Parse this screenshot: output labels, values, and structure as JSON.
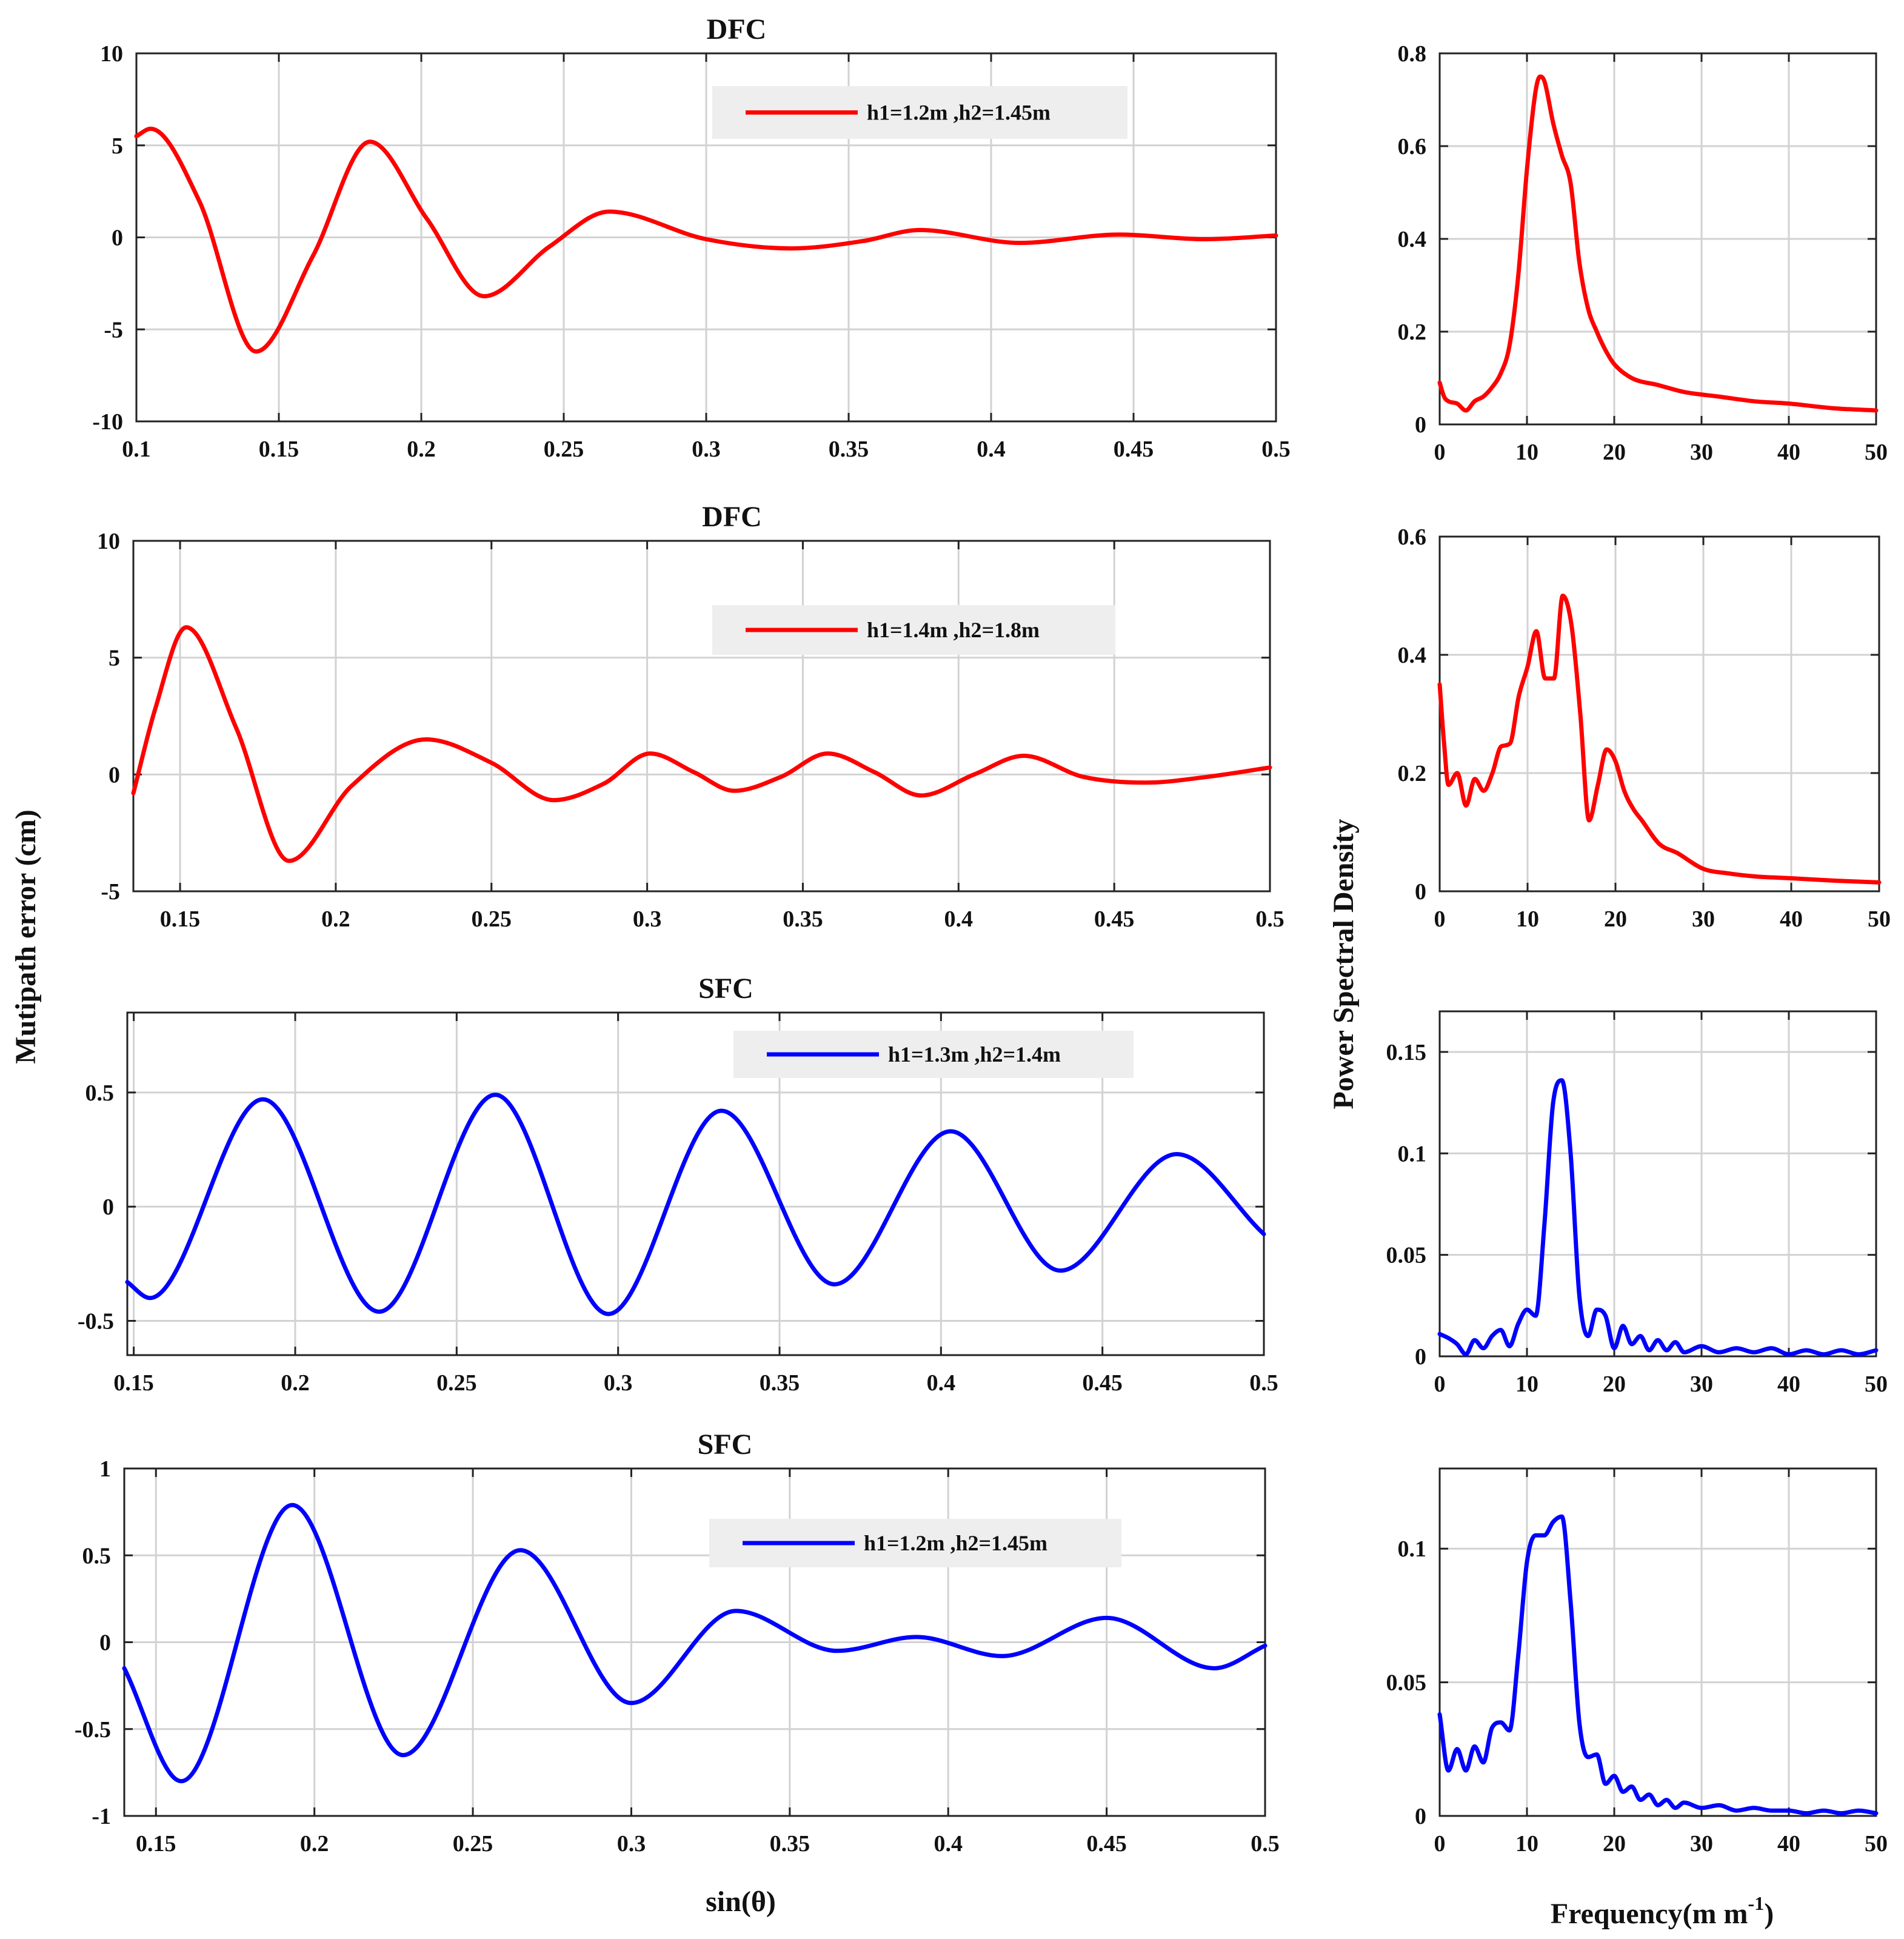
{
  "figure": {
    "left_ylabel": "Mutipath error (cm)",
    "right_ylabel": "Power Spectral Density",
    "left_xlabel": "sin(θ)",
    "right_xlabel_main": "Frequency(m m",
    "right_xlabel_sup": "-1",
    "right_xlabel_end": ")"
  },
  "chart_data": [
    {
      "id": "mp1",
      "type": "line",
      "title": "DFC",
      "color": "#ff0000",
      "legend": "h1=1.2m ,h2=1.45m",
      "xlim": [
        0.1,
        0.5
      ],
      "ylim": [
        -10,
        10
      ],
      "xticks": [
        0.1,
        0.15,
        0.2,
        0.25,
        0.3,
        0.35,
        0.4,
        0.45,
        0.5
      ],
      "xtick_labels": [
        "0.1",
        "0.15",
        "0.2",
        "0.25",
        "0.3",
        "0.35",
        "0.4",
        "0.45",
        "0.5"
      ],
      "yticks": [
        -10,
        -5,
        0,
        5,
        10
      ],
      "ytick_labels": [
        "-10",
        "-5",
        "0",
        "5",
        "10"
      ],
      "x": [
        0.1,
        0.105,
        0.122,
        0.142,
        0.162,
        0.182,
        0.202,
        0.222,
        0.245,
        0.266,
        0.3,
        0.33,
        0.355,
        0.375,
        0.41,
        0.445,
        0.475,
        0.5
      ],
      "y": [
        5.5,
        5.9,
        2.0,
        -6.2,
        -1.0,
        5.2,
        1.0,
        -3.2,
        -0.5,
        1.4,
        -0.1,
        -0.6,
        -0.2,
        0.4,
        -0.3,
        0.15,
        -0.1,
        0.1
      ]
    },
    {
      "id": "psd1",
      "type": "line",
      "title": "",
      "color": "#ff0000",
      "xlim": [
        0,
        50
      ],
      "ylim": [
        0,
        0.8
      ],
      "xticks": [
        0,
        10,
        20,
        30,
        40,
        50
      ],
      "xtick_labels": [
        "0",
        "10",
        "20",
        "30",
        "40",
        "50"
      ],
      "yticks": [
        0,
        0.2,
        0.4,
        0.6,
        0.8
      ],
      "ytick_labels": [
        "0",
        "0.2",
        "0.4",
        "0.6",
        "0.8"
      ],
      "x": [
        0,
        0.5,
        1,
        2,
        3,
        4,
        5,
        6,
        7,
        8,
        9,
        10,
        11,
        11.5,
        12,
        13,
        14,
        15,
        16,
        17,
        18,
        19,
        20,
        22,
        25,
        28,
        32,
        36,
        40,
        45,
        50
      ],
      "y": [
        0.09,
        0.06,
        0.05,
        0.045,
        0.03,
        0.05,
        0.06,
        0.08,
        0.11,
        0.17,
        0.32,
        0.55,
        0.72,
        0.75,
        0.74,
        0.65,
        0.58,
        0.52,
        0.35,
        0.25,
        0.2,
        0.16,
        0.13,
        0.1,
        0.085,
        0.07,
        0.06,
        0.05,
        0.045,
        0.035,
        0.03
      ]
    },
    {
      "id": "mp2",
      "type": "line",
      "title": "DFC",
      "color": "#ff0000",
      "legend": "h1=1.4m ,h2=1.8m",
      "xlim": [
        0.135,
        0.5
      ],
      "ylim": [
        -5,
        10
      ],
      "xticks": [
        0.15,
        0.2,
        0.25,
        0.3,
        0.35,
        0.4,
        0.45,
        0.5
      ],
      "xtick_labels": [
        "0.15",
        "0.2",
        "0.25",
        "0.3",
        "0.35",
        "0.4",
        "0.45",
        "0.5"
      ],
      "yticks": [
        -5,
        0,
        5,
        10
      ],
      "ytick_labels": [
        "-5",
        "0",
        "5",
        "10"
      ],
      "x": [
        0.135,
        0.142,
        0.152,
        0.168,
        0.185,
        0.205,
        0.229,
        0.25,
        0.27,
        0.286,
        0.301,
        0.315,
        0.328,
        0.343,
        0.358,
        0.373,
        0.388,
        0.405,
        0.421,
        0.44,
        0.46,
        0.48,
        0.5
      ],
      "y": [
        -0.8,
        2.8,
        6.3,
        2.0,
        -3.7,
        -0.5,
        1.5,
        0.5,
        -1.1,
        -0.4,
        0.9,
        0.1,
        -0.7,
        -0.1,
        0.9,
        0.1,
        -0.9,
        0.0,
        0.8,
        -0.1,
        -0.35,
        -0.1,
        0.3
      ]
    },
    {
      "id": "psd2",
      "type": "line",
      "title": "",
      "color": "#ff0000",
      "xlim": [
        0,
        50
      ],
      "ylim": [
        0,
        0.6
      ],
      "xticks": [
        0,
        10,
        20,
        30,
        40,
        50
      ],
      "xtick_labels": [
        "0",
        "10",
        "20",
        "30",
        "40",
        "50"
      ],
      "yticks": [
        0,
        0.2,
        0.4,
        0.6
      ],
      "ytick_labels": [
        "0",
        "0.2",
        "0.4",
        "0.6"
      ],
      "x": [
        0,
        0.5,
        1,
        2,
        3,
        4,
        5,
        6,
        7,
        8,
        9,
        10,
        11,
        12,
        13,
        14,
        15,
        16,
        17,
        18,
        19,
        20,
        21,
        22,
        23,
        25,
        27,
        30,
        33,
        36,
        40,
        45,
        50
      ],
      "y": [
        0.35,
        0.25,
        0.18,
        0.2,
        0.145,
        0.19,
        0.17,
        0.2,
        0.245,
        0.25,
        0.33,
        0.38,
        0.44,
        0.36,
        0.36,
        0.5,
        0.45,
        0.3,
        0.12,
        0.18,
        0.24,
        0.22,
        0.17,
        0.14,
        0.12,
        0.08,
        0.065,
        0.038,
        0.03,
        0.025,
        0.022,
        0.018,
        0.015
      ]
    },
    {
      "id": "mp3",
      "type": "line",
      "title": "SFC",
      "color": "#0000ff",
      "legend": "h1=1.3m ,h2=1.4m",
      "xlim": [
        0.148,
        0.5
      ],
      "ylim": [
        -0.65,
        0.85
      ],
      "xticks": [
        0.15,
        0.2,
        0.25,
        0.3,
        0.35,
        0.4,
        0.45,
        0.5
      ],
      "xtick_labels": [
        "0.15",
        "0.2",
        "0.25",
        "0.3",
        "0.35",
        "0.4",
        "0.45",
        "0.5"
      ],
      "yticks": [
        -0.5,
        0,
        0.5
      ],
      "ytick_labels": [
        "-0.5",
        "0",
        "0.5"
      ],
      "x": [
        0.148,
        0.155,
        0.19,
        0.226,
        0.262,
        0.297,
        0.332,
        0.367,
        0.403,
        0.437,
        0.473,
        0.5
      ],
      "y": [
        -0.33,
        -0.4,
        0.47,
        -0.46,
        0.49,
        -0.47,
        0.42,
        -0.34,
        0.33,
        -0.28,
        0.23,
        -0.12
      ]
    },
    {
      "id": "psd3",
      "type": "line",
      "title": "",
      "color": "#0000ff",
      "xlim": [
        0,
        50
      ],
      "ylim": [
        0,
        0.17
      ],
      "xticks": [
        0,
        10,
        20,
        30,
        40,
        50
      ],
      "xtick_labels": [
        "0",
        "10",
        "20",
        "30",
        "40",
        "50"
      ],
      "yticks": [
        0,
        0.05,
        0.1,
        0.15
      ],
      "ytick_labels": [
        "0",
        "0.05",
        "0.1",
        "0.15"
      ],
      "x": [
        0,
        1,
        2,
        3,
        4,
        5,
        6,
        7,
        8,
        9,
        10,
        11,
        12,
        13,
        14,
        15,
        16,
        17,
        18,
        19,
        20,
        21,
        22,
        23,
        24,
        25,
        26,
        27,
        28,
        30,
        32,
        34,
        36,
        38,
        40,
        42,
        44,
        46,
        48,
        50
      ],
      "y": [
        0.011,
        0.009,
        0.006,
        0.001,
        0.008,
        0.004,
        0.01,
        0.013,
        0.005,
        0.016,
        0.023,
        0.02,
        0.065,
        0.125,
        0.136,
        0.1,
        0.03,
        0.01,
        0.023,
        0.02,
        0.004,
        0.015,
        0.006,
        0.01,
        0.003,
        0.008,
        0.003,
        0.007,
        0.002,
        0.005,
        0.002,
        0.004,
        0.002,
        0.004,
        0.001,
        0.003,
        0.001,
        0.003,
        0.001,
        0.003
      ]
    },
    {
      "id": "mp4",
      "type": "line",
      "title": "SFC",
      "color": "#0000ff",
      "legend": "h1=1.2m ,h2=1.45m",
      "xlim": [
        0.14,
        0.5
      ],
      "ylim": [
        -1,
        1
      ],
      "xticks": [
        0.15,
        0.2,
        0.25,
        0.3,
        0.35,
        0.4,
        0.45,
        0.5
      ],
      "xtick_labels": [
        "0.15",
        "0.2",
        "0.25",
        "0.3",
        "0.35",
        "0.4",
        "0.45",
        "0.5"
      ],
      "yticks": [
        -1,
        -0.5,
        0,
        0.5,
        1
      ],
      "ytick_labels": [
        "-1",
        "-0.5",
        "0",
        "0.5",
        "1"
      ],
      "x": [
        0.14,
        0.158,
        0.193,
        0.228,
        0.265,
        0.3,
        0.333,
        0.365,
        0.39,
        0.417,
        0.45,
        0.484,
        0.5
      ],
      "y": [
        -0.15,
        -0.8,
        0.79,
        -0.65,
        0.53,
        -0.35,
        0.18,
        -0.05,
        0.03,
        -0.08,
        0.14,
        -0.15,
        -0.02
      ]
    },
    {
      "id": "psd4",
      "type": "line",
      "title": "",
      "color": "#0000ff",
      "xlim": [
        0,
        50
      ],
      "ylim": [
        0,
        0.13
      ],
      "xticks": [
        0,
        10,
        20,
        30,
        40,
        50
      ],
      "xtick_labels": [
        "0",
        "10",
        "20",
        "30",
        "40",
        "50"
      ],
      "yticks": [
        0,
        0.05,
        0.1
      ],
      "ytick_labels": [
        "0",
        "0.05",
        "0.1"
      ],
      "x": [
        0,
        1,
        2,
        3,
        4,
        5,
        6,
        7,
        8,
        9,
        10,
        11,
        12,
        13,
        14,
        15,
        16,
        17,
        18,
        19,
        20,
        21,
        22,
        23,
        24,
        25,
        26,
        27,
        28,
        30,
        32,
        34,
        36,
        38,
        40,
        42,
        44,
        46,
        48,
        50
      ],
      "y": [
        0.038,
        0.017,
        0.025,
        0.017,
        0.026,
        0.02,
        0.033,
        0.035,
        0.032,
        0.06,
        0.095,
        0.105,
        0.105,
        0.11,
        0.112,
        0.08,
        0.035,
        0.022,
        0.023,
        0.012,
        0.015,
        0.009,
        0.011,
        0.006,
        0.008,
        0.004,
        0.006,
        0.003,
        0.005,
        0.003,
        0.004,
        0.002,
        0.003,
        0.002,
        0.002,
        0.001,
        0.002,
        0.001,
        0.002,
        0.001
      ]
    }
  ]
}
